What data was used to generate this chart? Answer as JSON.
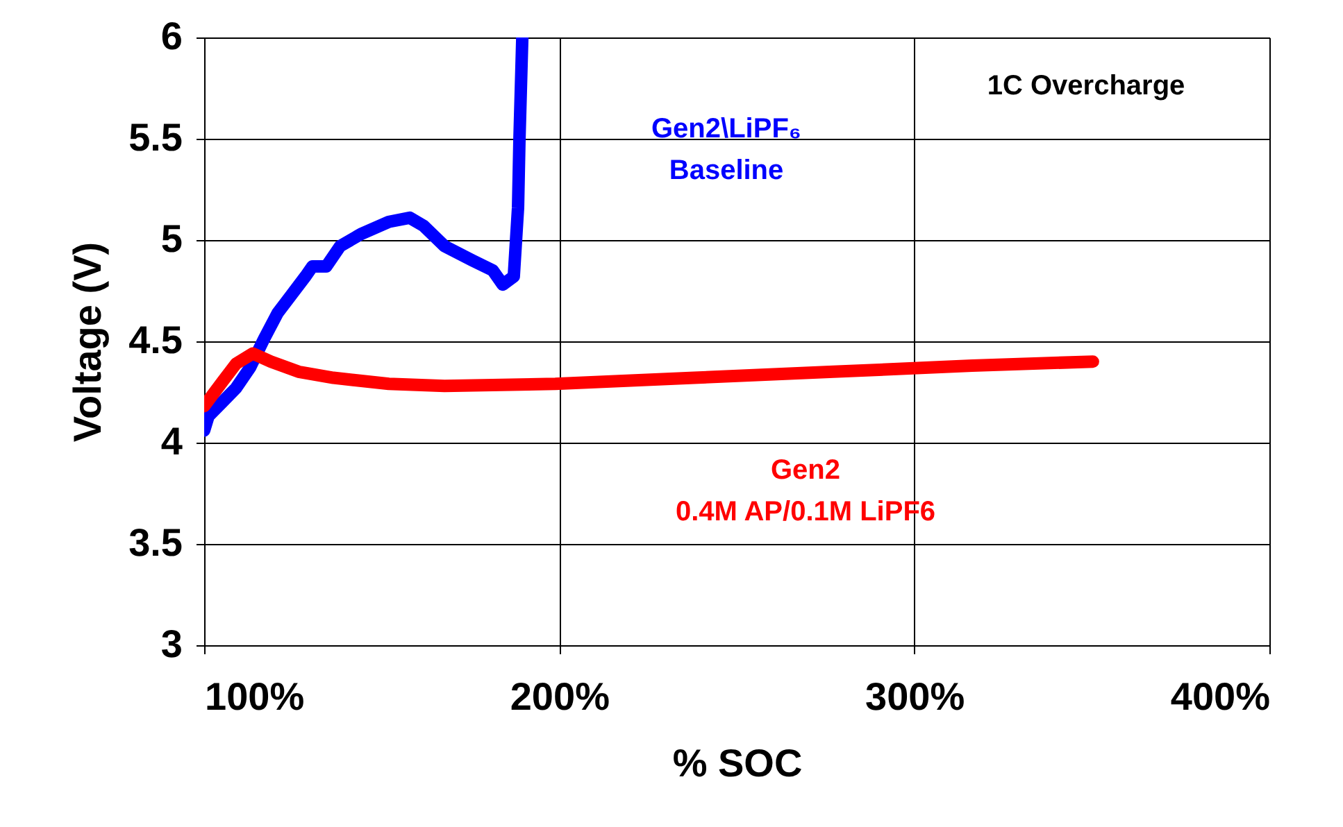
{
  "chart_data": {
    "type": "line",
    "xlabel": "% SOC",
    "ylabel": "Voltage (V)",
    "annotations": [
      "1C Overcharge"
    ],
    "xlim": [
      100,
      400
    ],
    "xticks": [
      {
        "value": 100,
        "label": "100%"
      },
      {
        "value": 200,
        "label": "200%"
      },
      {
        "value": 300,
        "label": "300%"
      },
      {
        "value": 400,
        "label": "400%"
      }
    ],
    "ylim": [
      3,
      6
    ],
    "yticks": [
      3,
      3.5,
      4,
      4.5,
      5,
      5.5,
      6
    ],
    "grid": true,
    "line_style": "solid",
    "series": [
      {
        "name": "Gen2\\LiPF₆\nBaseline",
        "color": "#0000ff",
        "x": [
          100,
          101.2,
          105.1,
          109,
          112.9,
          116.8,
          120.7,
          124.6,
          128.5,
          130.5,
          134.4,
          138.3,
          144.2,
          152,
          157.9,
          161.8,
          167.7,
          175.5,
          181.3,
          184.1,
          187.2,
          188.4,
          188.8,
          189.6
        ],
        "values": [
          4.06,
          4.13,
          4.2,
          4.27,
          4.37,
          4.51,
          4.64,
          4.73,
          4.82,
          4.87,
          4.87,
          4.97,
          5.03,
          5.09,
          5.11,
          5.07,
          4.97,
          4.9,
          4.85,
          4.78,
          4.82,
          5.16,
          5.5,
          6.0
        ]
      },
      {
        "name": "Gen2\n0.4M AP/0.1M LiPF6",
        "color": "#ff0000",
        "x": [
          100,
          105.1,
          109,
          113.7,
          118.8,
          126.6,
          136.4,
          152,
          167.7,
          198.9,
          238,
          277.2,
          316.3,
          350.3
        ],
        "values": [
          4.18,
          4.3,
          4.39,
          4.44,
          4.4,
          4.35,
          4.32,
          4.29,
          4.28,
          4.29,
          4.32,
          4.35,
          4.38,
          4.4
        ]
      }
    ]
  }
}
